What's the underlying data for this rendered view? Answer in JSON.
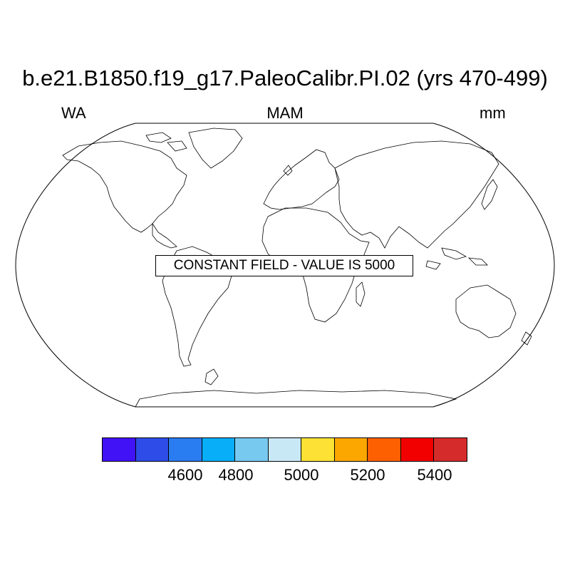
{
  "header": {
    "title": "b.e21.B1850.f19_g17.PaleoCalibr.PI.02 (yrs 470-499)",
    "left_label": "WA",
    "center_label": "MAM",
    "right_label": "mm"
  },
  "map": {
    "projection": "Robinson",
    "notice": "CONSTANT FIELD - VALUE IS 5000"
  },
  "colorbar": {
    "colors": [
      "#4212f7",
      "#2e4de8",
      "#2a7df0",
      "#08aef8",
      "#78c9f0",
      "#c9e8f6",
      "#fde235",
      "#fca700",
      "#fd6000",
      "#f20000",
      "#d62b2b"
    ],
    "tick_labels": [
      "4600",
      "4800",
      "5000",
      "5200",
      "5400"
    ]
  }
}
